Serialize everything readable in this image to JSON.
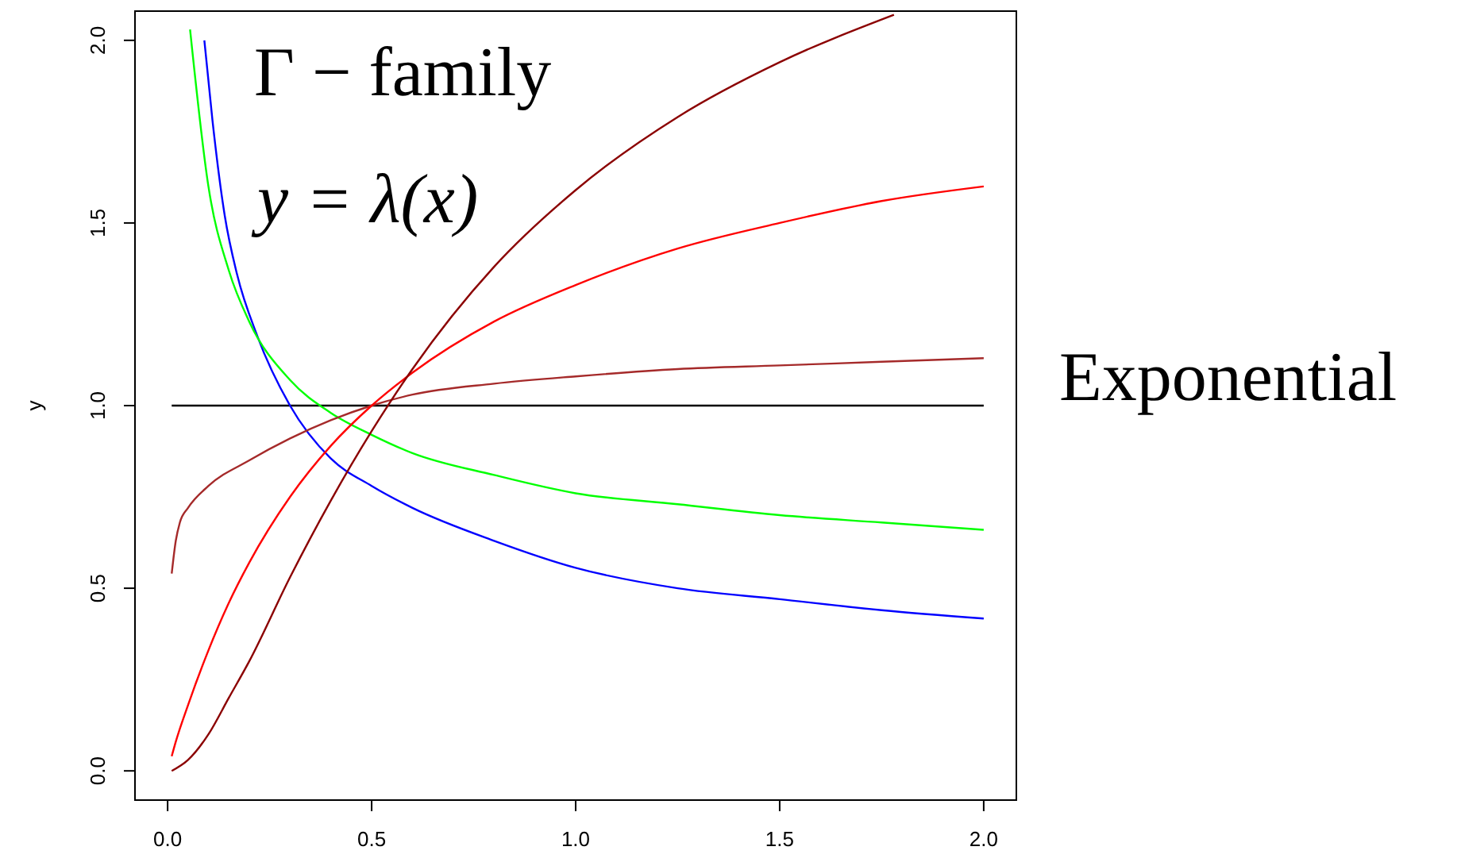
{
  "chart_data": {
    "type": "line",
    "ylabel": "y",
    "annotations": [
      "Γ − family",
      "y = λ(x)",
      "Exponential"
    ],
    "xlim": [
      -0.08,
      2.08
    ],
    "ylim": [
      -0.08,
      2.08
    ],
    "xticks": [
      {
        "value": 0,
        "label": "0.0"
      },
      0.5,
      {
        "value": 1,
        "label": "1.0"
      },
      1.5,
      {
        "value": 2,
        "label": "2.0"
      }
    ],
    "yticks": [
      {
        "value": 0,
        "label": "0.0"
      },
      0.5,
      {
        "value": 1,
        "label": "1.0"
      },
      1.5,
      {
        "value": 2,
        "label": "2.0"
      }
    ],
    "grid": false,
    "series": [
      {
        "color": "#000000",
        "x": [
          0.01,
          2
        ],
        "values": [
          1,
          1
        ]
      },
      {
        "color": "#0000ff",
        "x": [
          0.09,
          0.11,
          0.14,
          0.17,
          0.22,
          0.3,
          0.4,
          0.5,
          0.6,
          0.8,
          1.0,
          1.25,
          1.5,
          1.75,
          2.0
        ],
        "values": [
          2.0,
          1.78,
          1.52,
          1.36,
          1.19,
          1.0,
          0.855,
          0.78,
          0.72,
          0.63,
          0.556,
          0.5,
          0.47,
          0.44,
          0.417
        ]
      },
      {
        "color": "#00ff00",
        "x": [
          0.055,
          0.1,
          0.15,
          0.2,
          0.3,
          0.4,
          0.5,
          0.6,
          0.8,
          1.0,
          1.25,
          1.5,
          1.75,
          2.0
        ],
        "values": [
          2.03,
          1.6,
          1.37,
          1.23,
          1.07,
          0.98,
          0.92,
          0.87,
          0.81,
          0.76,
          0.73,
          0.7,
          0.68,
          0.66
        ]
      },
      {
        "color": "#a52a2a",
        "x": [
          0.01,
          0.02,
          0.03,
          0.05,
          0.1,
          0.2,
          0.3,
          0.4,
          0.5,
          0.6,
          0.8,
          1.0,
          1.25,
          1.5,
          1.75,
          2.0
        ],
        "values": [
          0.54,
          0.63,
          0.68,
          0.72,
          0.78,
          0.85,
          0.91,
          0.96,
          1.0,
          1.03,
          1.06,
          1.08,
          1.1,
          1.11,
          1.12,
          1.13
        ]
      },
      {
        "color": "#ff0000",
        "x": [
          0.01,
          0.02,
          0.05,
          0.1,
          0.15,
          0.2,
          0.3,
          0.4,
          0.5,
          0.6,
          0.8,
          1.0,
          1.25,
          1.5,
          1.75,
          2.0
        ],
        "values": [
          0.04,
          0.08,
          0.18,
          0.33,
          0.46,
          0.57,
          0.75,
          0.89,
          1.0,
          1.09,
          1.23,
          1.33,
          1.43,
          1.5,
          1.56,
          1.6
        ]
      },
      {
        "color": "#8b0000",
        "x": [
          0.01,
          0.05,
          0.1,
          0.15,
          0.2,
          0.3,
          0.4,
          0.5,
          0.6,
          0.8,
          1.0,
          1.25,
          1.5,
          1.78
        ],
        "values": [
          0.0,
          0.03,
          0.1,
          0.2,
          0.3,
          0.53,
          0.74,
          0.93,
          1.1,
          1.38,
          1.59,
          1.79,
          1.94,
          2.07
        ]
      }
    ]
  }
}
